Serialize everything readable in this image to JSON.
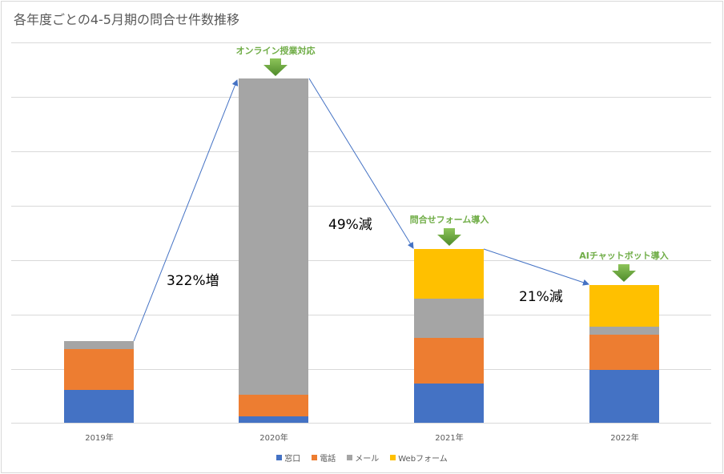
{
  "chart": {
    "title": "各年度ごとの4-5月期の問合せ件数推移",
    "categories": [
      "2019年",
      "2020年",
      "2021年",
      "2022年"
    ],
    "legend": [
      {
        "name": "窓口",
        "color": "#4472c4"
      },
      {
        "name": "電話",
        "color": "#ed7d31"
      },
      {
        "name": "メール",
        "color": "#a5a5a5"
      },
      {
        "name": "Webフォーム",
        "color": "#ffc000"
      }
    ],
    "annotations": {
      "change_2019_2020": "322%増",
      "change_2020_2021": "49%減",
      "change_2021_2022": "21%減",
      "event_2020": "オンライン授業対応",
      "event_2021": "問合せフォーム導入",
      "event_2022": "AIチャットボット導入"
    }
  },
  "chart_data": {
    "type": "bar",
    "stacked": true,
    "title": "各年度ごとの4-5月期の問合せ件数推移",
    "xlabel": "",
    "ylabel": "",
    "categories": [
      "2019年",
      "2020年",
      "2021年",
      "2022年"
    ],
    "series": [
      {
        "name": "窓口",
        "values": [
          60,
          12,
          72,
          97
        ]
      },
      {
        "name": "電話",
        "values": [
          75,
          40,
          84,
          65
        ]
      },
      {
        "name": "メール",
        "values": [
          15,
          581,
          72,
          15
        ]
      },
      {
        "name": "Webフォーム",
        "values": [
          0,
          0,
          91,
          76
        ]
      }
    ],
    "totals_relative": [
      150,
      633,
      319,
      253
    ],
    "y_axis_labels_visible": false,
    "grid": true,
    "gridline_count": 8,
    "legend_position": "bottom",
    "annotations": [
      {
        "text": "322%増",
        "from": "2019年",
        "to": "2020年"
      },
      {
        "text": "49%減",
        "from": "2020年",
        "to": "2021年"
      },
      {
        "text": "21%減",
        "from": "2021年",
        "to": "2022年"
      },
      {
        "text": "オンライン授業対応",
        "at": "2020年"
      },
      {
        "text": "問合せフォーム導入",
        "at": "2021年"
      },
      {
        "text": "AIチャットボット導入",
        "at": "2022年"
      }
    ],
    "note": "Values are relative estimates (one gridline ≈ 100 units); no y-axis tick labels shown."
  }
}
